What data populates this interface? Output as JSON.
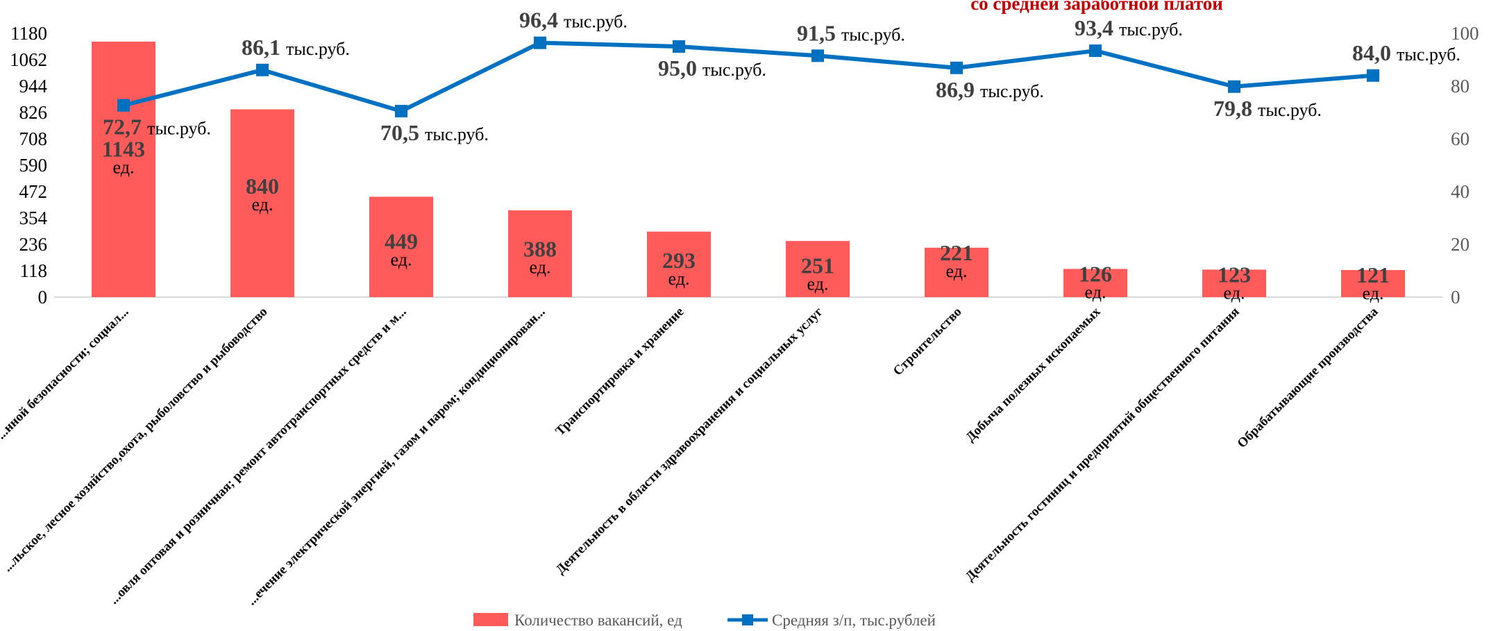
{
  "chart_data": {
    "type": "bar",
    "title": "со средней заработной платой",
    "categories": [
      "...нной безопасности; социал...",
      "...льское, лесное хозяйство,охота, рыболовство и рыбоводство",
      "...овля оптовая и розничная; ремонт автотранспортных средств и м...",
      "...ечение электрической энергией, газом и паром; кондиционирован...",
      "Транспортировка и хранение",
      "Деятельность в области здравоохранения и социальных услуг",
      "Строительство",
      "Добыча полезных ископаемых",
      "Деятельность гостиниц и предприятий общественного питания",
      "Обрабатывающие производства"
    ],
    "series": [
      {
        "name": "Количество вакансий, ед",
        "type": "bar",
        "axis": "left",
        "color": "#FF5B5B",
        "values": [
          1143,
          840,
          449,
          388,
          293,
          251,
          221,
          126,
          123,
          121
        ],
        "labels": [
          "1143",
          "840",
          "449",
          "388",
          "293",
          "251",
          "221",
          "126",
          "123",
          "121"
        ],
        "label_unit": "ед."
      },
      {
        "name": "Средняя з/п, тыс.рублей",
        "type": "line",
        "axis": "right",
        "color": "#0070C0",
        "marker": "square",
        "values": [
          72.7,
          86.1,
          70.5,
          96.4,
          95.0,
          91.5,
          86.9,
          93.4,
          79.8,
          84.0
        ],
        "labels": [
          "72,7",
          "86,1",
          "70,5",
          "96,4",
          "95,0",
          "91,5",
          "86,9",
          "93,4",
          "79,8",
          "84,0"
        ],
        "label_unit": "тыс.руб.",
        "label_position": [
          "below",
          "above",
          "below",
          "above",
          "below",
          "above",
          "below",
          "above",
          "below",
          "above"
        ]
      }
    ],
    "y_left": {
      "ylim": [
        0,
        1180
      ],
      "ticks": [
        "0",
        "118",
        "236",
        "354",
        "472",
        "590",
        "708",
        "826",
        "944",
        "1062",
        "1180"
      ]
    },
    "y_right": {
      "ylim": [
        0,
        100
      ],
      "ticks": [
        "0",
        "20",
        "40",
        "60",
        "80",
        "100"
      ]
    },
    "xlabel": "",
    "ylabel": "",
    "grid": false,
    "legend_position": "bottom",
    "colors": {
      "title": "#C00000",
      "axis_line": "#D9D9D9"
    }
  }
}
